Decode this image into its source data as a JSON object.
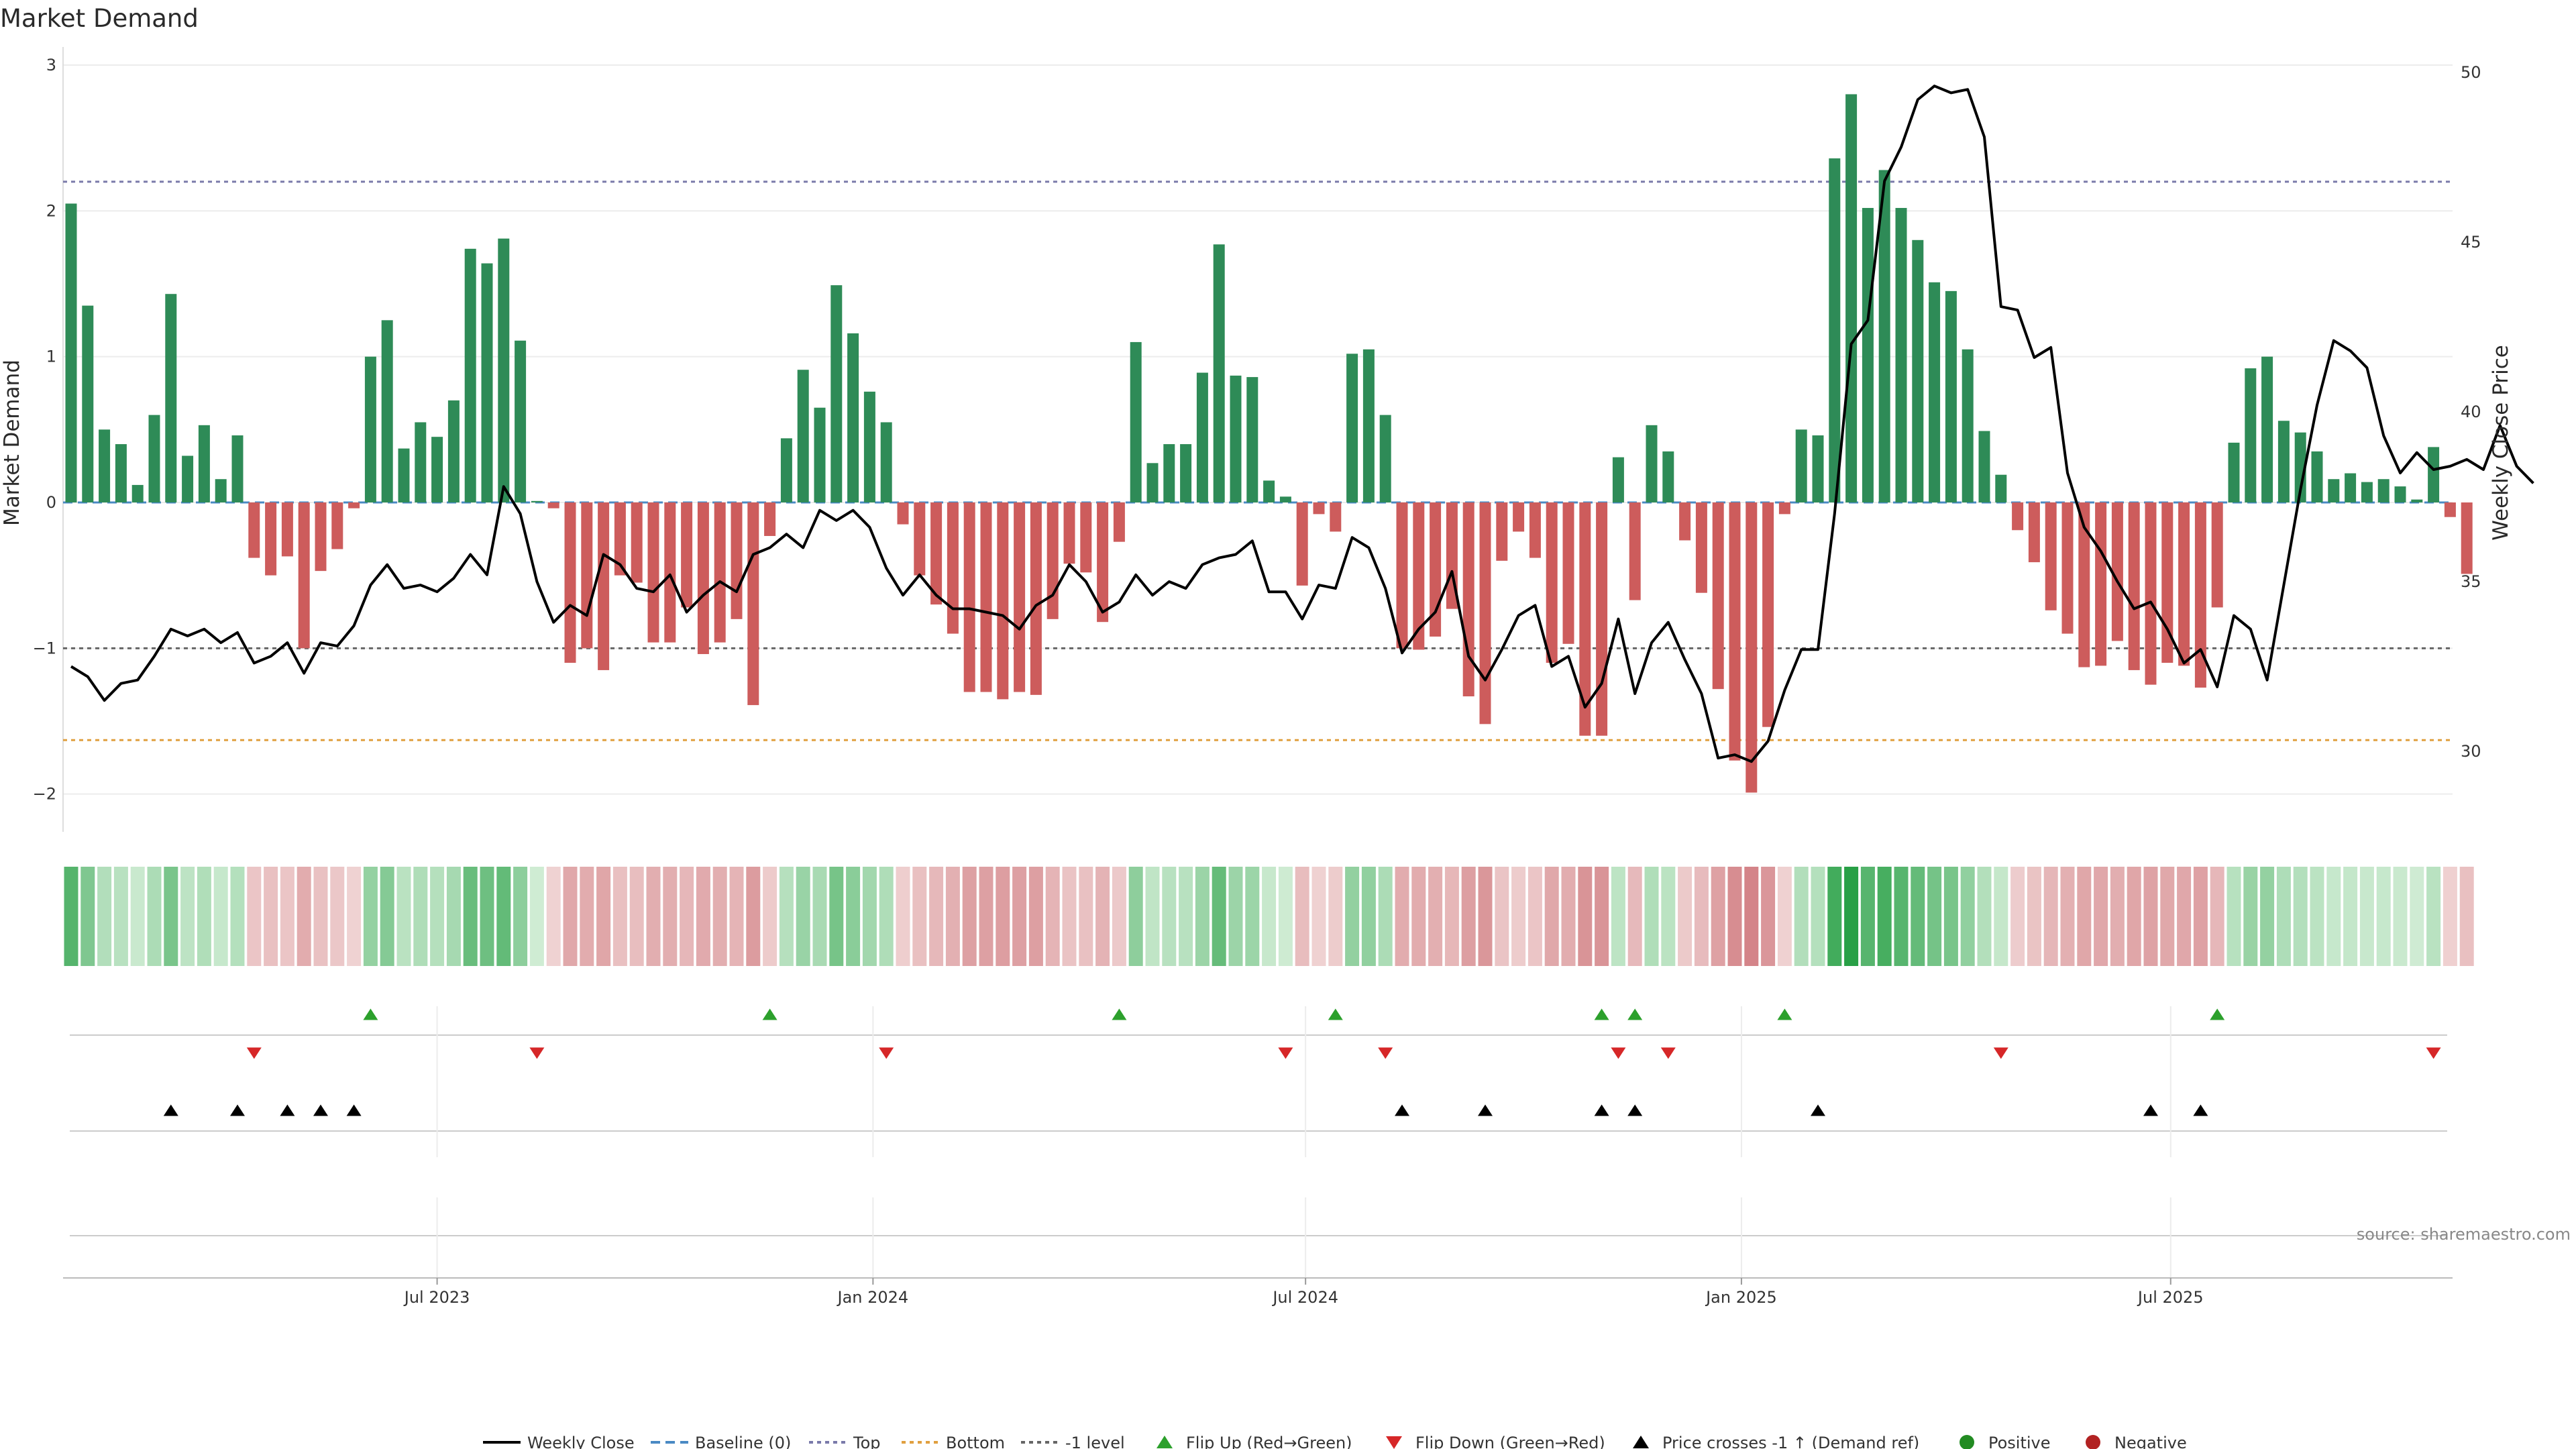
{
  "chart_data": {
    "type": "bar",
    "title": "Market Demand",
    "ylabel": "Market Demand",
    "y2label": "Weekly Close Price",
    "ylim": [
      -2.25,
      3
    ],
    "y2lim": [
      28,
      50.3
    ],
    "yticks": [
      3,
      2,
      1,
      0,
      -1,
      -2
    ],
    "ytick_labels": [
      "3",
      "2",
      "1",
      "0",
      "−1",
      "−2"
    ],
    "y2ticks": [
      50,
      45,
      40,
      35,
      30
    ],
    "y2tick_labels": [
      "50",
      "45",
      "40",
      "35",
      "30"
    ],
    "xticks": [
      {
        "label": "Jul 2023",
        "index": 22
      },
      {
        "label": "Jan 2024",
        "index": 48.2
      },
      {
        "label": "Jul 2024",
        "index": 74.2
      },
      {
        "label": "Jan 2025",
        "index": 100.4
      },
      {
        "label": "Jul 2025",
        "index": 126.2
      }
    ],
    "reference_lines": {
      "top": 2.2,
      "bottom": -1.63,
      "minus_one": -1,
      "baseline": 0
    },
    "demand": [
      2.05,
      1.35,
      0.5,
      0.4,
      0.12,
      0.6,
      1.43,
      0.32,
      0.53,
      0.16,
      0.46,
      -0.38,
      -0.5,
      -0.37,
      -1.0,
      -0.47,
      -0.32,
      -0.04,
      1.0,
      1.25,
      0.37,
      0.55,
      0.45,
      0.7,
      1.74,
      1.64,
      1.81,
      1.11,
      0.01,
      -0.04,
      -1.1,
      -1.0,
      -1.15,
      -0.5,
      -0.55,
      -0.96,
      -0.96,
      -0.72,
      -1.04,
      -0.96,
      -0.8,
      -1.39,
      -0.23,
      0.44,
      0.91,
      0.65,
      1.49,
      1.16,
      0.76,
      0.55,
      -0.15,
      -0.5,
      -0.7,
      -0.9,
      -1.3,
      -1.3,
      -1.35,
      -1.3,
      -1.32,
      -0.8,
      -0.42,
      -0.48,
      -0.82,
      -0.27,
      1.1,
      0.27,
      0.4,
      0.4,
      0.89,
      1.77,
      0.87,
      0.86,
      0.15,
      0.04,
      -0.57,
      -0.08,
      -0.2,
      1.02,
      1.05,
      0.6,
      -1.0,
      -1.01,
      -0.92,
      -0.73,
      -1.33,
      -1.52,
      -0.4,
      -0.2,
      -0.38,
      -1.1,
      -0.97,
      -1.6,
      -1.6,
      0.31,
      -0.67,
      0.53,
      0.35,
      -0.26,
      -0.62,
      -1.28,
      -1.77,
      -1.99,
      -1.54,
      -0.08,
      0.5,
      0.46,
      2.36,
      2.8,
      2.02,
      2.28,
      2.02,
      1.8,
      1.51,
      1.45,
      1.05,
      0.49,
      0.19,
      -0.19,
      -0.41,
      -0.74,
      -0.9,
      -1.13,
      -1.12,
      -0.95,
      -1.15,
      -1.25,
      -1.1,
      -1.12,
      -1.27,
      -0.72,
      0.41,
      0.92,
      1.0,
      0.56,
      0.48,
      0.35,
      0.16,
      0.2,
      0.14,
      0.16,
      0.11,
      0.02,
      0.38,
      -0.1,
      -0.49
    ],
    "weekly_close": [
      32.5,
      32.2,
      31.5,
      32.0,
      32.1,
      32.8,
      33.6,
      33.4,
      33.6,
      33.2,
      33.5,
      32.6,
      32.8,
      33.2,
      32.3,
      33.2,
      33.1,
      33.7,
      34.9,
      35.5,
      34.8,
      34.9,
      34.7,
      35.1,
      35.8,
      35.2,
      37.8,
      37.0,
      35.0,
      33.8,
      34.3,
      34.0,
      35.8,
      35.5,
      34.8,
      34.7,
      35.2,
      34.1,
      34.6,
      35.0,
      34.7,
      35.8,
      36.0,
      36.4,
      36.0,
      37.1,
      36.8,
      37.1,
      36.6,
      35.4,
      34.6,
      35.2,
      34.6,
      34.2,
      34.2,
      34.1,
      34.0,
      33.6,
      34.3,
      34.6,
      35.5,
      35.0,
      34.1,
      34.4,
      35.2,
      34.6,
      35.0,
      34.8,
      35.5,
      35.7,
      35.8,
      36.2,
      34.7,
      34.7,
      33.9,
      34.9,
      34.8,
      36.3,
      36.0,
      34.8,
      32.9,
      33.6,
      34.1,
      35.3,
      32.8,
      32.1,
      33.0,
      34.0,
      34.3,
      32.5,
      32.8,
      31.3,
      32.0,
      33.9,
      31.7,
      33.2,
      33.8,
      32.7,
      31.7,
      29.8,
      29.9,
      29.7,
      30.3,
      31.8,
      33.0,
      33.0,
      37.0,
      42.0,
      42.7,
      46.8,
      47.8,
      49.2,
      49.6,
      49.4,
      49.5,
      48.1,
      43.1,
      43.0,
      41.6,
      41.9,
      38.2,
      36.6,
      35.9,
      35.0,
      34.2,
      34.4,
      33.6,
      32.6,
      33.0,
      31.9,
      34.0,
      33.6,
      32.1,
      34.9,
      37.7,
      40.2,
      42.1,
      41.8,
      41.3,
      39.3,
      38.2,
      38.8,
      38.3,
      38.4,
      38.6,
      38.3,
      39.6,
      38.4,
      37.9
    ]
  },
  "markers": {
    "flip_up": [
      18,
      42,
      63,
      76,
      92,
      94,
      103,
      129
    ],
    "flip_down": [
      11,
      28,
      49,
      73,
      79,
      93,
      96,
      116,
      142
    ],
    "price_cross": [
      6,
      10,
      13,
      15,
      17,
      80,
      85,
      92,
      94,
      105,
      125,
      128
    ]
  },
  "legend": [
    {
      "key": "close",
      "label": "Weekly Close"
    },
    {
      "key": "baseline",
      "label": "Baseline (0)"
    },
    {
      "key": "top",
      "label": "Top"
    },
    {
      "key": "bottom",
      "label": "Bottom"
    },
    {
      "key": "minus1",
      "label": "-1 level"
    },
    {
      "key": "flipup",
      "label": "Flip Up (Red→Green)"
    },
    {
      "key": "flipdown",
      "label": "Flip Down (Green→Red)"
    },
    {
      "key": "cross",
      "label": "Price crosses -1 ↑ (Demand ref)"
    },
    {
      "key": "positive",
      "label": "Positive"
    },
    {
      "key": "negative",
      "label": "Negative"
    }
  ],
  "colors": {
    "positive": "#2e8b57",
    "negative": "#cd5c5c",
    "close": "#000000",
    "baseline": "#4a8ac4",
    "top": "#7a7aaa",
    "bottom": "#e0a040",
    "minus1": "#666666",
    "flip_up": "#2ca02c",
    "flip_down": "#d62728",
    "dot_positive": "#228b22",
    "dot_negative": "#b22222"
  },
  "source": "source: sharemaestro.com"
}
